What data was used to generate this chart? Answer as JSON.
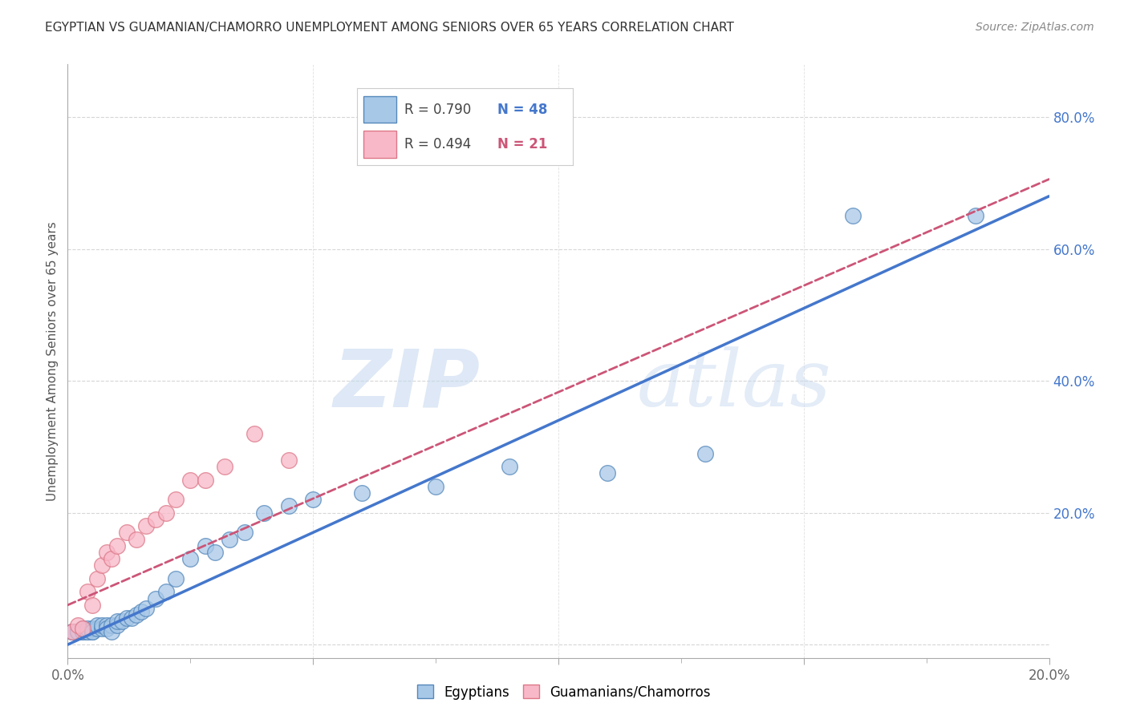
{
  "title": "EGYPTIAN VS GUAMANIAN/CHAMORRO UNEMPLOYMENT AMONG SENIORS OVER 65 YEARS CORRELATION CHART",
  "source": "Source: ZipAtlas.com",
  "ylabel": "Unemployment Among Seniors over 65 years",
  "xlim": [
    0.0,
    0.2
  ],
  "ylim": [
    -0.02,
    0.88
  ],
  "xticks": [
    0.0,
    0.05,
    0.1,
    0.15,
    0.2
  ],
  "xtick_labels": [
    "0.0%",
    "",
    "",
    "",
    "20.0%"
  ],
  "ytick_positions": [
    0.0,
    0.2,
    0.4,
    0.6,
    0.8
  ],
  "ytick_labels": [
    "",
    "20.0%",
    "40.0%",
    "60.0%",
    "80.0%"
  ],
  "watermark_zip": "ZIP",
  "watermark_atlas": "atlas",
  "legend_r1": "R = 0.790",
  "legend_n1": "N = 48",
  "legend_r2": "R = 0.494",
  "legend_n2": "N = 21",
  "blue_scatter_color": "#a8c8e8",
  "blue_edge_color": "#5588bb",
  "pink_scatter_color": "#f8b8c8",
  "pink_edge_color": "#dd7788",
  "blue_line_color": "#4477cc",
  "pink_line_color": "#cc5577",
  "egyptians_x": [
    0.001,
    0.001,
    0.002,
    0.002,
    0.002,
    0.003,
    0.003,
    0.003,
    0.004,
    0.004,
    0.004,
    0.005,
    0.005,
    0.005,
    0.006,
    0.006,
    0.007,
    0.007,
    0.008,
    0.008,
    0.009,
    0.009,
    0.01,
    0.01,
    0.011,
    0.012,
    0.013,
    0.014,
    0.015,
    0.016,
    0.018,
    0.02,
    0.022,
    0.025,
    0.028,
    0.03,
    0.033,
    0.036,
    0.04,
    0.045,
    0.05,
    0.06,
    0.075,
    0.09,
    0.11,
    0.13,
    0.16,
    0.185
  ],
  "egyptians_y": [
    0.02,
    0.02,
    0.02,
    0.02,
    0.02,
    0.02,
    0.02,
    0.025,
    0.02,
    0.02,
    0.025,
    0.02,
    0.025,
    0.02,
    0.025,
    0.03,
    0.025,
    0.03,
    0.03,
    0.025,
    0.03,
    0.02,
    0.03,
    0.035,
    0.035,
    0.04,
    0.04,
    0.045,
    0.05,
    0.055,
    0.07,
    0.08,
    0.1,
    0.13,
    0.15,
    0.14,
    0.16,
    0.17,
    0.2,
    0.21,
    0.22,
    0.23,
    0.24,
    0.27,
    0.26,
    0.29,
    0.65,
    0.65
  ],
  "guam_x": [
    0.001,
    0.002,
    0.003,
    0.004,
    0.005,
    0.006,
    0.007,
    0.008,
    0.009,
    0.01,
    0.012,
    0.014,
    0.016,
    0.018,
    0.02,
    0.022,
    0.025,
    0.028,
    0.032,
    0.038,
    0.045
  ],
  "guam_y": [
    0.02,
    0.03,
    0.025,
    0.08,
    0.06,
    0.1,
    0.12,
    0.14,
    0.13,
    0.15,
    0.17,
    0.16,
    0.18,
    0.19,
    0.2,
    0.22,
    0.25,
    0.25,
    0.27,
    0.32,
    0.28
  ],
  "blue_regline_x0": 0.0,
  "blue_regline_y0": 0.0,
  "blue_regline_x1": 0.2,
  "blue_regline_y1": 0.68,
  "pink_regline_x0": 0.0,
  "pink_regline_y0": 0.06,
  "pink_regline_x1": 0.048,
  "pink_regline_y1": 0.215,
  "background_color": "#ffffff",
  "grid_color": "#cccccc"
}
